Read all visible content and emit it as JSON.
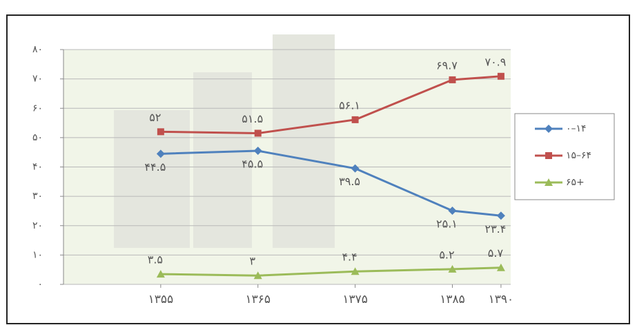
{
  "chart_data": {
    "type": "line",
    "x": [
      1355,
      1365,
      1375,
      1385,
      1390
    ],
    "xlim": [
      1345,
      1391
    ],
    "xticks": [
      {
        "value": 1355,
        "label": "۱۳۵۵"
      },
      {
        "value": 1365,
        "label": "۱۳۶۵"
      },
      {
        "value": 1375,
        "label": "۱۳۷۵"
      },
      {
        "value": 1385,
        "label": "۱۳۸۵"
      },
      {
        "value": 1390,
        "label": "۱۳۹۰"
      }
    ],
    "ylim": [
      0,
      80
    ],
    "yticks": [
      {
        "value": 0,
        "label": "۰"
      },
      {
        "value": 10,
        "label": "۱۰"
      },
      {
        "value": 20,
        "label": "۲۰"
      },
      {
        "value": 30,
        "label": "۳۰"
      },
      {
        "value": 40,
        "label": "۴۰"
      },
      {
        "value": 50,
        "label": "۵۰"
      },
      {
        "value": 60,
        "label": "۶۰"
      },
      {
        "value": 70,
        "label": "۷۰"
      },
      {
        "value": 80,
        "label": "۸۰"
      }
    ],
    "grid": true,
    "legend": "right",
    "series": [
      {
        "name": "۰–۱۴",
        "color": "#4f81bd",
        "marker": "diamond",
        "label_side": "below",
        "values": [
          44.5,
          45.5,
          39.5,
          25.1,
          23.4
        ],
        "value_labels": [
          "۴۴.۵",
          "۴۵.۵",
          "۳۹.۵",
          "۲۵.۱",
          "۲۳.۴"
        ]
      },
      {
        "name": "۱۵–۶۴",
        "color": "#c0504d",
        "marker": "square",
        "label_side": "above",
        "values": [
          52,
          51.5,
          56.1,
          69.7,
          70.9
        ],
        "value_labels": [
          "۵۲",
          "۵۱.۵",
          "۵۶.۱",
          "۶۹.۷",
          "۷۰.۹"
        ]
      },
      {
        "name": "۶۵+",
        "color": "#9bbb59",
        "marker": "triangle",
        "label_side": "above",
        "values": [
          3.5,
          3,
          4.4,
          5.2,
          5.7
        ],
        "value_labels": [
          "۳.۵",
          "۳",
          "۴.۴",
          "۵.۲",
          "۵.۷"
        ]
      }
    ]
  }
}
